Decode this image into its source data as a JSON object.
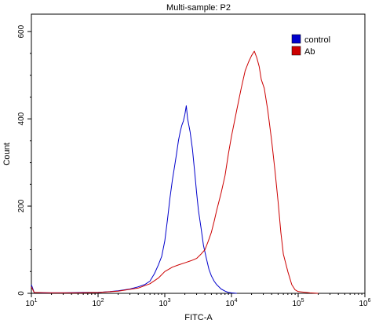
{
  "chart_data": {
    "type": "line",
    "title": "Multi-sample: P2",
    "xlabel": "FITC-A",
    "ylabel": "Count",
    "x_scale": "log",
    "xlim": [
      10,
      1000000
    ],
    "ylim": [
      0,
      640
    ],
    "x_ticks": [
      10,
      100,
      1000,
      10000,
      100000,
      1000000
    ],
    "x_tick_labels": [
      {
        "base": "10",
        "exp": "1"
      },
      {
        "base": "10",
        "exp": "2"
      },
      {
        "base": "10",
        "exp": "3"
      },
      {
        "base": "10",
        "exp": "4"
      },
      {
        "base": "10",
        "exp": "5"
      },
      {
        "base": "10",
        "exp": "6"
      }
    ],
    "y_ticks": [
      0,
      200,
      400,
      600
    ],
    "y_tick_labels": [
      "0",
      "200",
      "400",
      "600"
    ],
    "grid": false,
    "legend_position": "top-right",
    "series": [
      {
        "name": "control",
        "color": "#0000cc",
        "points": [
          [
            10,
            20
          ],
          [
            11,
            2
          ],
          [
            15,
            1
          ],
          [
            30,
            1
          ],
          [
            60,
            2
          ],
          [
            100,
            2
          ],
          [
            150,
            4
          ],
          [
            200,
            6
          ],
          [
            300,
            10
          ],
          [
            400,
            15
          ],
          [
            500,
            20
          ],
          [
            600,
            28
          ],
          [
            700,
            45
          ],
          [
            800,
            65
          ],
          [
            900,
            85
          ],
          [
            1000,
            120
          ],
          [
            1100,
            170
          ],
          [
            1200,
            220
          ],
          [
            1300,
            260
          ],
          [
            1400,
            290
          ],
          [
            1500,
            320
          ],
          [
            1600,
            350
          ],
          [
            1700,
            370
          ],
          [
            1800,
            385
          ],
          [
            1900,
            395
          ],
          [
            2000,
            410
          ],
          [
            2100,
            430
          ],
          [
            2200,
            400
          ],
          [
            2400,
            370
          ],
          [
            2600,
            330
          ],
          [
            2800,
            280
          ],
          [
            3000,
            230
          ],
          [
            3200,
            190
          ],
          [
            3500,
            150
          ],
          [
            3800,
            110
          ],
          [
            4200,
            80
          ],
          [
            4600,
            55
          ],
          [
            5000,
            40
          ],
          [
            5500,
            28
          ],
          [
            6000,
            20
          ],
          [
            7000,
            10
          ],
          [
            8000,
            5
          ],
          [
            9000,
            2
          ],
          [
            10000,
            1
          ],
          [
            12000,
            0
          ]
        ]
      },
      {
        "name": "Ab",
        "color": "#cc0000",
        "points": [
          [
            10,
            15
          ],
          [
            11,
            2
          ],
          [
            20,
            1
          ],
          [
            50,
            1
          ],
          [
            100,
            2
          ],
          [
            200,
            5
          ],
          [
            400,
            12
          ],
          [
            600,
            22
          ],
          [
            800,
            35
          ],
          [
            1000,
            50
          ],
          [
            1300,
            60
          ],
          [
            1600,
            65
          ],
          [
            2000,
            70
          ],
          [
            2500,
            75
          ],
          [
            3000,
            80
          ],
          [
            3500,
            90
          ],
          [
            4000,
            100
          ],
          [
            4500,
            120
          ],
          [
            5000,
            140
          ],
          [
            5500,
            165
          ],
          [
            6000,
            190
          ],
          [
            7000,
            230
          ],
          [
            8000,
            270
          ],
          [
            9000,
            320
          ],
          [
            10000,
            360
          ],
          [
            12000,
            420
          ],
          [
            14000,
            470
          ],
          [
            16000,
            510
          ],
          [
            18000,
            530
          ],
          [
            20000,
            545
          ],
          [
            22000,
            555
          ],
          [
            24000,
            540
          ],
          [
            26000,
            520
          ],
          [
            28000,
            490
          ],
          [
            31000,
            470
          ],
          [
            35000,
            420
          ],
          [
            40000,
            350
          ],
          [
            45000,
            280
          ],
          [
            50000,
            210
          ],
          [
            55000,
            140
          ],
          [
            60000,
            90
          ],
          [
            70000,
            50
          ],
          [
            80000,
            20
          ],
          [
            90000,
            8
          ],
          [
            100000,
            4
          ],
          [
            150000,
            1
          ],
          [
            200000,
            0
          ]
        ]
      }
    ]
  }
}
